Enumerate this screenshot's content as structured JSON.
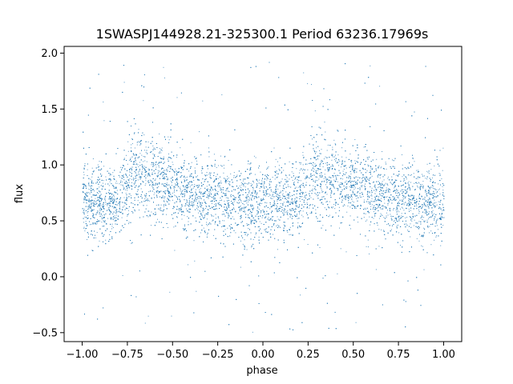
{
  "chart_data": {
    "type": "scatter",
    "title": "1SWASPJ144928.21-325300.1 Period 63236.17969s",
    "xlabel": "phase",
    "ylabel": "flux",
    "xlim": [
      -1.1,
      1.1
    ],
    "ylim": [
      -0.58,
      2.06
    ],
    "xticks": [
      -1.0,
      -0.75,
      -0.5,
      -0.25,
      0.0,
      0.25,
      0.5,
      0.75,
      1.0
    ],
    "xtick_labels": [
      "−1.00",
      "−0.75",
      "−0.50",
      "−0.25",
      "0.00",
      "0.25",
      "0.50",
      "0.75",
      "1.00"
    ],
    "yticks": [
      -0.5,
      0.0,
      0.5,
      1.0,
      1.5,
      2.0
    ],
    "ytick_labels": [
      "−0.5",
      "0.0",
      "0.5",
      "1.0",
      "1.5",
      "2.0"
    ],
    "grid": false,
    "series": [
      {
        "color": "#1f77b4",
        "profile_phase": [
          -1.0,
          -0.9,
          -0.8,
          -0.7,
          -0.6,
          -0.5,
          -0.4,
          -0.3,
          -0.2,
          -0.1,
          0.0,
          0.1,
          0.2,
          0.3,
          0.4,
          0.5,
          0.6,
          0.7,
          0.8,
          0.9,
          1.0
        ],
        "profile_flux": [
          0.68,
          0.66,
          0.7,
          0.95,
          0.88,
          0.8,
          0.74,
          0.7,
          0.68,
          0.66,
          0.66,
          0.66,
          0.72,
          0.95,
          0.88,
          0.8,
          0.74,
          0.7,
          0.68,
          0.66,
          0.68
        ],
        "scatter_sigma": 0.17,
        "outlier_range": [
          -0.5,
          1.95
        ]
      }
    ]
  }
}
